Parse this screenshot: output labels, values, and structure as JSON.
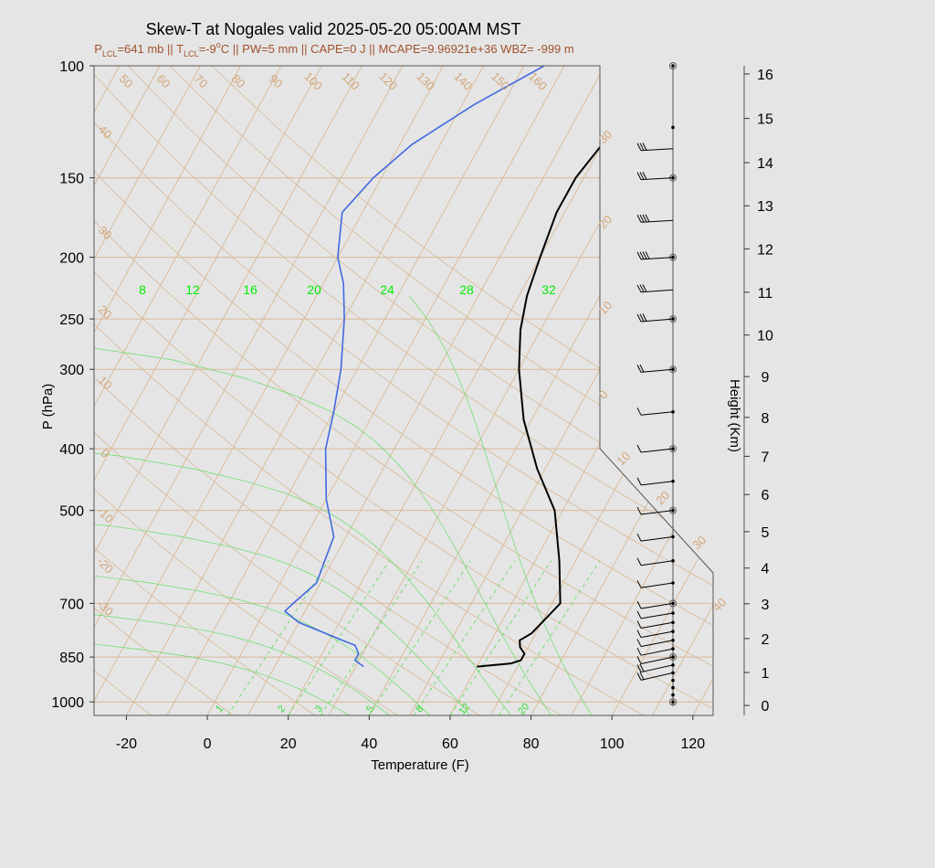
{
  "header": {
    "title": "Skew-T at Nogales valid 2025-05-20 05:00AM MST",
    "subtitle": {
      "lcl_p": "P",
      "lcl_p_sub": "LCL",
      "lcl_p_val": "=641 mb || T",
      "lcl_t_sub": "LCL",
      "lcl_t_val": "=-9",
      "deg": "o",
      "rest": "C || PW=5 mm || CAPE=0 J || MCAPE=9.96921e+36 WBZ= -999 m"
    }
  },
  "chart_data": {
    "type": "line",
    "title": "Skew-T at Nogales valid 2025-05-20 05:00AM MST",
    "xlabel": "Temperature (F)",
    "ylabel": "P (hPa)",
    "y2label": "Height (Km)",
    "xlim": [
      -28,
      125
    ],
    "ylim_hpa": [
      1050,
      100
    ],
    "x_ticks": [
      -20,
      0,
      20,
      40,
      60,
      80,
      100,
      120
    ],
    "p_ticks": [
      1000,
      850,
      700,
      500,
      400,
      300,
      250,
      200,
      150,
      100
    ],
    "height_ticks_km": [
      0,
      1,
      2,
      3,
      4,
      5,
      6,
      7,
      8,
      9,
      10,
      11,
      12,
      13,
      14,
      15,
      16
    ],
    "height_tick_p": [
      1013,
      899,
      795,
      701,
      616,
      540,
      472,
      411,
      357,
      308,
      265,
      227,
      194,
      166,
      142,
      121,
      103
    ],
    "isotherm_top_labels": [
      "50",
      "60",
      "70",
      "80",
      "90",
      "100",
      "110",
      "120",
      "130",
      "140",
      "150",
      "160"
    ],
    "isotherm_left_labels": [
      "40",
      "30",
      "20",
      "10",
      "0",
      "-10",
      "-20",
      "-30"
    ],
    "wind_scale_labels": [
      "30",
      "20",
      "10",
      "0",
      "10",
      "20",
      "30",
      "40"
    ],
    "mixing_ratio_top_labels": [
      "8",
      "12",
      "16",
      "20",
      "24",
      "28",
      "32"
    ],
    "mixing_ratio_bottom_labels": [
      "1",
      "2",
      "3",
      "5",
      "8",
      "12",
      "20"
    ],
    "series": [
      {
        "role": "temperature",
        "color": "#000000",
        "points": [
          [
            60,
            880
          ],
          [
            68,
            870
          ],
          [
            70,
            860
          ],
          [
            70,
            840
          ],
          [
            68,
            820
          ],
          [
            67,
            800
          ],
          [
            69,
            780
          ],
          [
            72,
            700
          ],
          [
            66,
            600
          ],
          [
            58,
            500
          ],
          [
            48,
            430
          ],
          [
            38,
            360
          ],
          [
            30,
            300
          ],
          [
            25,
            260
          ],
          [
            22,
            230
          ],
          [
            20,
            200
          ],
          [
            18,
            170
          ],
          [
            18,
            150
          ],
          [
            20,
            133
          ],
          [
            28,
            115
          ],
          [
            38,
            100
          ]
        ]
      },
      {
        "role": "dewpoint",
        "color": "#4169e1",
        "points": [
          [
            32,
            880
          ],
          [
            29,
            860
          ],
          [
            29,
            840
          ],
          [
            27,
            815
          ],
          [
            10,
            750
          ],
          [
            5,
            720
          ],
          [
            6,
            700
          ],
          [
            9,
            650
          ],
          [
            8,
            600
          ],
          [
            7,
            550
          ],
          [
            0,
            480
          ],
          [
            -7,
            400
          ],
          [
            -10,
            350
          ],
          [
            -14,
            300
          ],
          [
            -20,
            250
          ],
          [
            -25,
            220
          ],
          [
            -30,
            200
          ],
          [
            -35,
            170
          ],
          [
            -32,
            150
          ],
          [
            -27,
            133
          ],
          [
            -17,
            115
          ],
          [
            -5,
            100
          ]
        ]
      }
    ],
    "wind_dots_p": [
      1000,
      975,
      950,
      925,
      900,
      875,
      850,
      825,
      800,
      775,
      750,
      725,
      700,
      650,
      600,
      550,
      500,
      450,
      400,
      350,
      300,
      250,
      200,
      150,
      125,
      100
    ],
    "wind_circles_p": [
      1000,
      850,
      700,
      500,
      400,
      300,
      250,
      200,
      150,
      100
    ],
    "wind_barbs_p": [
      900,
      875,
      850,
      825,
      800,
      775,
      750,
      725,
      700,
      650,
      600,
      550,
      500,
      450,
      400,
      350,
      300,
      250,
      225,
      200,
      175,
      150,
      135
    ],
    "wind_barb_flags": [
      2,
      2,
      1,
      1,
      1,
      1,
      1,
      1,
      1,
      1,
      1,
      1,
      1,
      1,
      1,
      1,
      2,
      3,
      3,
      4,
      4,
      3,
      3
    ]
  }
}
